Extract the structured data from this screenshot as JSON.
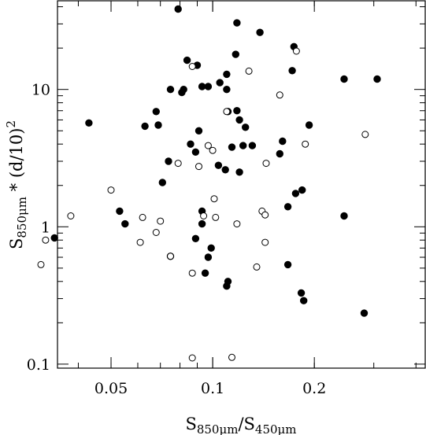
{
  "chart_data": {
    "type": "scatter",
    "title": "",
    "xlabel": {
      "main": "S",
      "sub": "850μm",
      "sep": "/S",
      "sub2": "450μm"
    },
    "ylabel": {
      "main": "S",
      "sub": "850μm",
      "rest": " * (d/10)",
      "sup": "2"
    },
    "xscale": "log",
    "yscale": "log",
    "xlim": [
      0.0347,
      0.426
    ],
    "ylim": [
      0.0935,
      44.2
    ],
    "xticks_major": [
      0.05,
      0.1,
      0.2
    ],
    "xtick_labels": [
      "0.05",
      "0.1",
      "0.2"
    ],
    "yticks_major": [
      0.1,
      1,
      10
    ],
    "ytick_labels": [
      "0.1",
      "1",
      "10"
    ],
    "grid": false,
    "legend": "none",
    "marker_colors": {
      "filled": "#000000",
      "open_edge": "#000000",
      "open_face": "#ffffff"
    },
    "series": [
      {
        "marker": "filled-circle",
        "points": [
          [
            0.079,
            38.5
          ],
          [
            0.118,
            30.5
          ],
          [
            0.138,
            26.0
          ],
          [
            0.174,
            20.5
          ],
          [
            0.117,
            18.0
          ],
          [
            0.084,
            16.3
          ],
          [
            0.09,
            15.0
          ],
          [
            0.172,
            13.7
          ],
          [
            0.105,
            11.2
          ],
          [
            0.093,
            10.5
          ],
          [
            0.097,
            10.5
          ],
          [
            0.11,
            12.9
          ],
          [
            0.11,
            10.0
          ],
          [
            0.075,
            10.0
          ],
          [
            0.081,
            9.5
          ],
          [
            0.082,
            10.0
          ],
          [
            0.245,
            11.9
          ],
          [
            0.307,
            11.9
          ],
          [
            0.068,
            6.9
          ],
          [
            0.118,
            7.0
          ],
          [
            0.111,
            6.9
          ],
          [
            0.12,
            6.0
          ],
          [
            0.125,
            5.3
          ],
          [
            0.091,
            5.0
          ],
          [
            0.086,
            4.0
          ],
          [
            0.043,
            5.7
          ],
          [
            0.063,
            5.4
          ],
          [
            0.069,
            5.5
          ],
          [
            0.193,
            5.5
          ],
          [
            0.161,
            4.2
          ],
          [
            0.114,
            3.8
          ],
          [
            0.123,
            3.9
          ],
          [
            0.131,
            3.9
          ],
          [
            0.158,
            3.4
          ],
          [
            0.089,
            3.5
          ],
          [
            0.074,
            3.0
          ],
          [
            0.104,
            2.8
          ],
          [
            0.109,
            2.6
          ],
          [
            0.12,
            2.5
          ],
          [
            0.071,
            2.1
          ],
          [
            0.184,
            1.85
          ],
          [
            0.176,
            1.75
          ],
          [
            0.167,
            1.4
          ],
          [
            0.053,
            1.3
          ],
          [
            0.093,
            1.3
          ],
          [
            0.055,
            1.05
          ],
          [
            0.093,
            1.05
          ],
          [
            0.245,
            1.2
          ],
          [
            0.034,
            0.83
          ],
          [
            0.089,
            0.82
          ],
          [
            0.099,
            0.7
          ],
          [
            0.075,
            0.61
          ],
          [
            0.097,
            0.6
          ],
          [
            0.167,
            0.53
          ],
          [
            0.095,
            0.46
          ],
          [
            0.111,
            0.4
          ],
          [
            0.11,
            0.37
          ],
          [
            0.183,
            0.33
          ],
          [
            0.186,
            0.29
          ],
          [
            0.281,
            0.235
          ]
        ]
      },
      {
        "marker": "open-circle",
        "points": [
          [
            0.177,
            19.0
          ],
          [
            0.087,
            14.7
          ],
          [
            0.128,
            13.6
          ],
          [
            0.158,
            9.1
          ],
          [
            0.11,
            6.9
          ],
          [
            0.1,
            3.6
          ],
          [
            0.097,
            3.9
          ],
          [
            0.188,
            4.0
          ],
          [
            0.283,
            4.7
          ],
          [
            0.079,
            2.9
          ],
          [
            0.091,
            2.75
          ],
          [
            0.144,
            2.9
          ],
          [
            0.05,
            1.85
          ],
          [
            0.101,
            1.6
          ],
          [
            0.038,
            1.2
          ],
          [
            0.062,
            1.17
          ],
          [
            0.094,
            1.2
          ],
          [
            0.102,
            1.17
          ],
          [
            0.14,
            1.3
          ],
          [
            0.143,
            1.22
          ],
          [
            0.07,
            1.1
          ],
          [
            0.118,
            1.05
          ],
          [
            0.068,
            0.91
          ],
          [
            0.032,
            0.8
          ],
          [
            0.061,
            0.77
          ],
          [
            0.143,
            0.77
          ],
          [
            0.075,
            0.61
          ],
          [
            0.031,
            0.53
          ],
          [
            0.087,
            0.46
          ],
          [
            0.135,
            0.51
          ],
          [
            0.087,
            0.111
          ],
          [
            0.114,
            0.112
          ]
        ]
      }
    ]
  }
}
